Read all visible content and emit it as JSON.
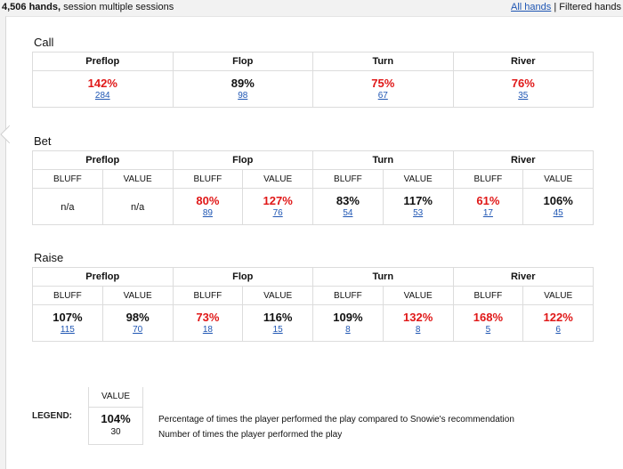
{
  "header": {
    "hands_bold": "4,506 hands,",
    "session_text": " session multiple sessions",
    "all_hands_link": "All hands",
    "separator": " | ",
    "filtered_hands": "Filtered hands"
  },
  "call": {
    "title": "Call",
    "streets": [
      {
        "name": "Preflop",
        "pct": "142%",
        "count": "284",
        "color": "red"
      },
      {
        "name": "Flop",
        "pct": "89%",
        "count": "98",
        "color": "black"
      },
      {
        "name": "Turn",
        "pct": "75%",
        "count": "67",
        "color": "red"
      },
      {
        "name": "River",
        "pct": "76%",
        "count": "35",
        "color": "red"
      }
    ]
  },
  "bet": {
    "title": "Bet",
    "streets": [
      "Preflop",
      "Flop",
      "Turn",
      "River"
    ],
    "sub_labels": [
      "BLUFF",
      "VALUE",
      "BLUFF",
      "VALUE",
      "BLUFF",
      "VALUE",
      "BLUFF",
      "VALUE"
    ],
    "cells": [
      {
        "pct": "n/a",
        "count": "",
        "color": "na"
      },
      {
        "pct": "n/a",
        "count": "",
        "color": "na"
      },
      {
        "pct": "80%",
        "count": "89",
        "color": "red"
      },
      {
        "pct": "127%",
        "count": "76",
        "color": "red"
      },
      {
        "pct": "83%",
        "count": "54",
        "color": "black"
      },
      {
        "pct": "117%",
        "count": "53",
        "color": "black"
      },
      {
        "pct": "61%",
        "count": "17",
        "color": "red"
      },
      {
        "pct": "106%",
        "count": "45",
        "color": "black"
      }
    ]
  },
  "raise": {
    "title": "Raise",
    "streets": [
      "Preflop",
      "Flop",
      "Turn",
      "River"
    ],
    "sub_labels": [
      "BLUFF",
      "VALUE",
      "BLUFF",
      "VALUE",
      "BLUFF",
      "VALUE",
      "BLUFF",
      "VALUE"
    ],
    "cells": [
      {
        "pct": "107%",
        "count": "115",
        "color": "black"
      },
      {
        "pct": "98%",
        "count": "70",
        "color": "black"
      },
      {
        "pct": "73%",
        "count": "18",
        "color": "red"
      },
      {
        "pct": "116%",
        "count": "15",
        "color": "black"
      },
      {
        "pct": "109%",
        "count": "8",
        "color": "black"
      },
      {
        "pct": "132%",
        "count": "8",
        "color": "red"
      },
      {
        "pct": "168%",
        "count": "5",
        "color": "red"
      },
      {
        "pct": "122%",
        "count": "6",
        "color": "red"
      }
    ]
  },
  "legend": {
    "label": "LEGEND:",
    "header": "VALUE",
    "pct": "104%",
    "count": "30",
    "pct_desc": "Percentage of times the player performed the play compared to Snowie's recommendation",
    "count_desc": "Number of times the player performed the play"
  },
  "colors": {
    "red": "#e01818",
    "link": "#1f56b3",
    "border": "#dcdcdc"
  }
}
